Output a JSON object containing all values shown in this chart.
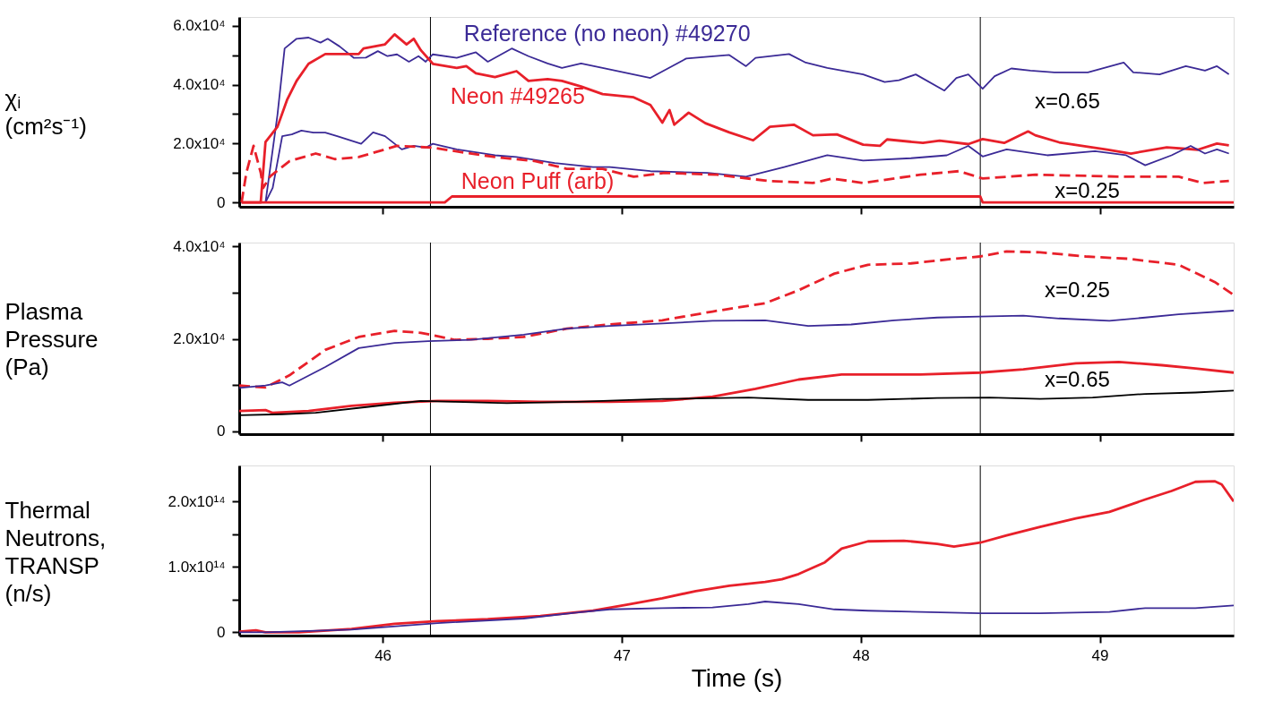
{
  "chart_data": [
    {
      "type": "line",
      "ylabel": "χᵢ (cm²s⁻¹)",
      "xlim": [
        45.4,
        49.56
      ],
      "xticks": [
        46,
        47,
        48,
        49
      ],
      "ylim": [
        -1500,
        63000
      ],
      "yticks": [
        {
          "value": 0,
          "label": "0"
        },
        {
          "value": 10000,
          "label": null
        },
        {
          "value": 20000,
          "label": "2.0x10⁴"
        },
        {
          "value": 30000,
          "label": null
        },
        {
          "value": 40000,
          "label": "4.0x10⁴"
        },
        {
          "value": 50000,
          "label": null
        },
        {
          "value": 60000,
          "label": "6.0x10⁴"
        }
      ],
      "tick_labels": "y",
      "series": [
        {
          "name": "Reference (no neon) #49270",
          "color": "#3b2a96",
          "x": [
            45.41,
            45.51,
            45.56,
            45.59,
            45.64,
            45.69,
            45.74,
            45.77,
            45.82,
            45.88,
            45.93,
            45.98,
            46.02,
            46.06,
            46.11,
            46.15,
            46.18,
            46.21,
            46.31,
            46.39,
            46.44,
            46.54,
            46.61,
            46.69,
            46.75,
            46.83,
            46.92,
            47.12,
            47.27,
            47.45,
            47.52,
            47.56,
            47.7,
            47.77,
            47.86,
            48.01,
            48.1,
            48.16,
            48.23,
            48.35,
            48.4,
            48.45,
            48.51,
            48.56,
            48.63,
            48.71,
            48.81,
            48.95,
            49.1,
            49.14,
            49.25,
            49.36,
            49.44,
            49.49,
            49.54
          ],
          "values": [
            0,
            0,
            29700,
            52300,
            55600,
            56000,
            54300,
            55600,
            53000,
            49100,
            49200,
            51400,
            49700,
            50300,
            47800,
            49700,
            47800,
            50300,
            49100,
            51000,
            47800,
            52300,
            49700,
            47200,
            45700,
            47200,
            45700,
            42300,
            48900,
            50100,
            46300,
            49100,
            50400,
            47500,
            45700,
            43500,
            40900,
            41500,
            43500,
            38000,
            42300,
            43500,
            38600,
            42900,
            45500,
            44800,
            44200,
            44200,
            47500,
            44200,
            43500,
            46300,
            44800,
            46300,
            43500
          ]
        },
        {
          "name": "Neon  #49265",
          "color": "#e8202a",
          "x": [
            45.41,
            45.49,
            45.51,
            45.56,
            45.6,
            45.64,
            45.69,
            45.76,
            45.9,
            45.92,
            46.01,
            46.05,
            46.1,
            46.13,
            46.16,
            46.21,
            46.31,
            46.35,
            46.39,
            46.47,
            46.56,
            46.61,
            46.69,
            46.75,
            46.83,
            46.92,
            47.05,
            47.12,
            47.17,
            47.2,
            47.22,
            47.28,
            47.35,
            47.45,
            47.55,
            47.62,
            47.72,
            47.8,
            47.9,
            48.01,
            48.08,
            48.11,
            48.26,
            48.33,
            48.45,
            48.51,
            48.6,
            48.7,
            48.73,
            48.83,
            49.03,
            49.13,
            49.28,
            49.41,
            49.49,
            49.54
          ],
          "values": [
            0,
            0,
            20500,
            25700,
            34800,
            41300,
            47100,
            50400,
            50400,
            52300,
            53700,
            57100,
            53700,
            55600,
            51700,
            47100,
            45700,
            46300,
            43900,
            42600,
            44600,
            41300,
            41900,
            41300,
            39400,
            36800,
            35700,
            33100,
            27100,
            31400,
            26400,
            30500,
            26900,
            23800,
            21100,
            25700,
            26400,
            22800,
            23100,
            19600,
            19200,
            21400,
            20200,
            21000,
            19800,
            21500,
            20200,
            24100,
            22800,
            20400,
            17900,
            16600,
            18700,
            17900,
            20000,
            19400
          ]
        },
        {
          "color": "#3b2a96",
          "x": [
            45.41,
            45.51,
            45.54,
            45.58,
            45.62,
            45.66,
            45.71,
            45.76,
            45.81,
            45.91,
            45.96,
            46.01,
            46.08,
            46.13,
            46.18,
            46.21,
            46.31,
            46.47,
            46.56,
            46.72,
            46.88,
            46.95,
            47.12,
            47.36,
            47.52,
            47.68,
            47.86,
            48.01,
            48.21,
            48.36,
            48.45,
            48.51,
            48.61,
            48.78,
            48.98,
            49.11,
            49.19,
            49.3,
            49.38,
            49.44,
            49.49,
            49.54
          ],
          "values": [
            0,
            0,
            4900,
            22500,
            23100,
            24400,
            23700,
            23700,
            22500,
            19900,
            23800,
            22500,
            18000,
            19200,
            18600,
            19900,
            18000,
            16000,
            15400,
            13400,
            12000,
            12000,
            10600,
            10000,
            8700,
            12000,
            16000,
            14200,
            15000,
            16000,
            19200,
            15600,
            18000,
            16000,
            17400,
            16000,
            12600,
            16000,
            19200,
            16600,
            18000,
            16600
          ]
        },
        {
          "color": "#e8202a",
          "line_style": "dashed",
          "x": [
            45.41,
            45.43,
            45.46,
            45.49,
            45.5,
            45.53,
            45.61,
            45.72,
            45.8,
            45.9,
            46.06,
            46.21,
            46.31,
            46.47,
            46.64,
            46.77,
            46.92,
            47.05,
            47.18,
            47.4,
            47.61,
            47.8,
            47.88,
            48.01,
            48.25,
            48.41,
            48.51,
            48.73,
            49.11,
            49.33,
            49.43,
            49.54
          ],
          "values": [
            0,
            10100,
            19200,
            10100,
            4900,
            8900,
            14000,
            16600,
            14700,
            15400,
            19200,
            18600,
            17300,
            15400,
            14000,
            11400,
            11400,
            8700,
            10000,
            9400,
            7300,
            6600,
            8100,
            6600,
            9400,
            10600,
            8100,
            9400,
            8700,
            8700,
            6600,
            7300
          ]
        },
        {
          "name": "Neon Puff (arb)",
          "color": "#e8202a",
          "x": [
            45.41,
            46.26,
            46.29,
            48.5,
            48.51,
            49.56
          ],
          "values": [
            0,
            0,
            2000,
            2000,
            0,
            0
          ]
        }
      ],
      "annotations": [
        "x=0.65",
        "x=0.25"
      ],
      "ref_lines": [
        {
          "axis": "x",
          "value": 46.2,
          "color": "#000000"
        },
        {
          "axis": "x",
          "value": 48.5,
          "color": "#000000"
        }
      ]
    },
    {
      "type": "line",
      "ylabel": "Plasma Pressure (Pa)",
      "xlim": [
        45.4,
        49.56
      ],
      "xticks": [
        46,
        47,
        48,
        49
      ],
      "ylim": [
        -600,
        40800
      ],
      "yticks": [
        {
          "value": 0,
          "label": "0"
        },
        {
          "value": 10000,
          "label": null
        },
        {
          "value": 20000,
          "label": "2.0x10⁴"
        },
        {
          "value": 30000,
          "label": null
        },
        {
          "value": 40000,
          "label": "4.0x10⁴"
        }
      ],
      "tick_labels": "y",
      "series": [
        {
          "color": "#e8202a",
          "line_style": "dashed",
          "x": [
            45.4,
            45.51,
            45.61,
            45.76,
            45.9,
            46.05,
            46.16,
            46.3,
            46.44,
            46.59,
            46.77,
            46.95,
            47.17,
            47.38,
            47.6,
            47.74,
            47.89,
            48.03,
            48.21,
            48.39,
            48.5,
            48.61,
            48.75,
            48.94,
            49.12,
            49.33,
            49.48,
            49.56
          ],
          "values": [
            9900,
            9500,
            12100,
            17600,
            20400,
            21700,
            21300,
            19800,
            20000,
            20400,
            22200,
            23100,
            24000,
            25900,
            27700,
            30500,
            34100,
            36000,
            36300,
            37300,
            37800,
            38900,
            38700,
            37800,
            37300,
            36000,
            32300,
            29500
          ]
        },
        {
          "color": "#3b2a96",
          "x": [
            45.4,
            45.51,
            45.58,
            45.61,
            45.76,
            45.9,
            46.05,
            46.19,
            46.37,
            46.59,
            46.77,
            46.95,
            47.17,
            47.38,
            47.6,
            47.78,
            47.96,
            48.14,
            48.32,
            48.5,
            48.68,
            48.83,
            49.04,
            49.19,
            49.33,
            49.56
          ],
          "values": [
            9400,
            9900,
            10600,
            9900,
            13900,
            18000,
            19100,
            19500,
            19800,
            20900,
            22200,
            22800,
            23300,
            23900,
            24000,
            22800,
            23100,
            24000,
            24600,
            24800,
            25000,
            24400,
            23900,
            24600,
            25300,
            26100
          ]
        },
        {
          "color": "#e8202a",
          "x": [
            45.4,
            45.51,
            45.54,
            45.69,
            45.87,
            46.05,
            46.23,
            46.44,
            46.66,
            46.95,
            47.17,
            47.38,
            47.56,
            47.74,
            47.92,
            48.25,
            48.5,
            48.68,
            48.9,
            49.08,
            49.26,
            49.4,
            49.56
          ],
          "values": [
            4400,
            4600,
            4000,
            4400,
            5500,
            6200,
            6600,
            6600,
            6400,
            6400,
            6600,
            7500,
            9200,
            11200,
            12300,
            12300,
            12700,
            13400,
            14700,
            15000,
            14300,
            13600,
            12700
          ]
        },
        {
          "color": "#000000",
          "x": [
            45.4,
            45.58,
            45.72,
            45.94,
            46.16,
            46.3,
            46.52,
            46.81,
            47.17,
            47.53,
            47.78,
            48.03,
            48.32,
            48.54,
            48.75,
            48.97,
            49.19,
            49.4,
            49.56
          ],
          "values": [
            3500,
            3700,
            4000,
            5300,
            6600,
            6400,
            6100,
            6400,
            7000,
            7300,
            6800,
            6800,
            7200,
            7300,
            7000,
            7300,
            8100,
            8400,
            8800
          ]
        }
      ],
      "annotations": [
        "x=0.25",
        "x=0.65"
      ],
      "ref_lines": [
        {
          "axis": "x",
          "value": 46.2,
          "color": "#000000"
        },
        {
          "axis": "x",
          "value": 48.5,
          "color": "#000000"
        }
      ]
    },
    {
      "type": "line",
      "ylabel": "Thermal Neutrons, TRANSP (n/s)",
      "xlabel": "Time (s)",
      "xlim": [
        45.4,
        49.56
      ],
      "xticks": [
        46,
        47,
        48,
        49
      ],
      "ylim": [
        -5000000000000.0,
        255000000000000.0
      ],
      "yticks": [
        {
          "value": 0,
          "label": "0"
        },
        {
          "value": 50000000000000.0,
          "label": null
        },
        {
          "value": 100000000000000.0,
          "label": "1.0x10¹⁴"
        },
        {
          "value": 150000000000000.0,
          "label": null
        },
        {
          "value": 200000000000000.0,
          "label": "2.0x10¹⁴"
        }
      ],
      "series": [
        {
          "color": "#e8202a",
          "x": [
            45.4,
            45.47,
            45.51,
            45.65,
            45.87,
            46.05,
            46.23,
            46.44,
            46.66,
            46.88,
            47.02,
            47.17,
            47.31,
            47.45,
            47.6,
            47.67,
            47.74,
            47.85,
            47.92,
            48.03,
            48.18,
            48.32,
            48.39,
            48.5,
            48.61,
            48.75,
            48.9,
            49.04,
            49.19,
            49.3,
            49.4,
            49.48,
            49.51,
            49.56
          ],
          "values": [
            1000000000000.0,
            3000000000000.0,
            0,
            0,
            5000000000000.0,
            13000000000000.0,
            17000000000000.0,
            20000000000000.0,
            25000000000000.0,
            33000000000000.0,
            42000000000000.0,
            52000000000000.0,
            63000000000000.0,
            71000000000000.0,
            77000000000000.0,
            81000000000000.0,
            89000000000000.0,
            107000000000000.0,
            128000000000000.0,
            139000000000000.0,
            140000000000000.0,
            135000000000000.0,
            131000000000000.0,
            137000000000000.0,
            148000000000000.0,
            161000000000000.0,
            174000000000000.0,
            184000000000000.0,
            203000000000000.0,
            216000000000000.0,
            230000000000000.0,
            231000000000000.0,
            226000000000000.0,
            200000000000000.0
          ]
        },
        {
          "color": "#3b2a96",
          "x": [
            45.4,
            45.51,
            45.87,
            46.23,
            46.59,
            46.81,
            46.95,
            47.17,
            47.38,
            47.53,
            47.6,
            47.74,
            47.89,
            48.03,
            48.25,
            48.5,
            48.75,
            49.04,
            49.19,
            49.4,
            49.56
          ],
          "values": [
            0,
            0,
            4000000000000.0,
            14000000000000.0,
            21000000000000.0,
            30000000000000.0,
            35000000000000.0,
            37000000000000.0,
            38000000000000.0,
            43000000000000.0,
            47000000000000.0,
            43000000000000.0,
            35000000000000.0,
            33000000000000.0,
            31000000000000.0,
            29000000000000.0,
            29000000000000.0,
            31000000000000.0,
            37000000000000.0,
            37000000000000.0,
            41000000000000.0
          ]
        }
      ],
      "ref_lines": [
        {
          "axis": "x",
          "value": 46.2,
          "color": "#000000"
        },
        {
          "axis": "x",
          "value": 48.5,
          "color": "#000000"
        }
      ]
    }
  ]
}
